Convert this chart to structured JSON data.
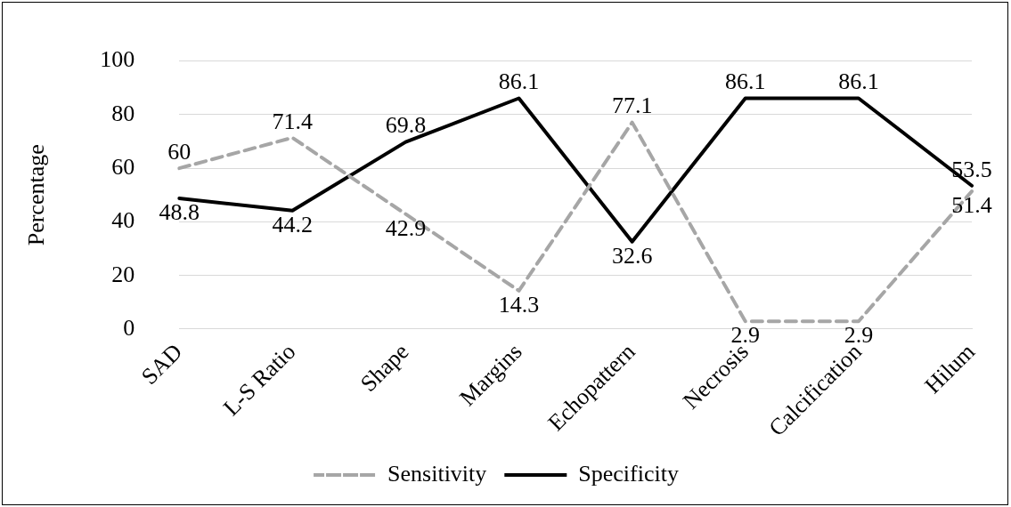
{
  "chart_data": {
    "type": "line",
    "ylabel": "Percentage",
    "categories": [
      "SAD",
      "L-S Ratio",
      "Shape",
      "Margins",
      "Echopattern",
      "Necrosis",
      "Calcification",
      "Hilum"
    ],
    "series": [
      {
        "name": "Sensitivity",
        "color": "#a6a6a6",
        "line_style": "dashed",
        "values": [
          60,
          71.4,
          42.9,
          14.3,
          77.1,
          2.9,
          2.9,
          51.4
        ]
      },
      {
        "name": "Specificity",
        "color": "#000000",
        "line_style": "solid",
        "values": [
          48.8,
          44.2,
          69.8,
          86.1,
          32.6,
          86.1,
          86.1,
          53.5
        ]
      }
    ],
    "ylim": [
      0,
      100
    ],
    "yticks": [
      0,
      20,
      40,
      60,
      80,
      100
    ],
    "grid": "y",
    "legend": "bottom",
    "marker": "none",
    "data_labels": true
  }
}
